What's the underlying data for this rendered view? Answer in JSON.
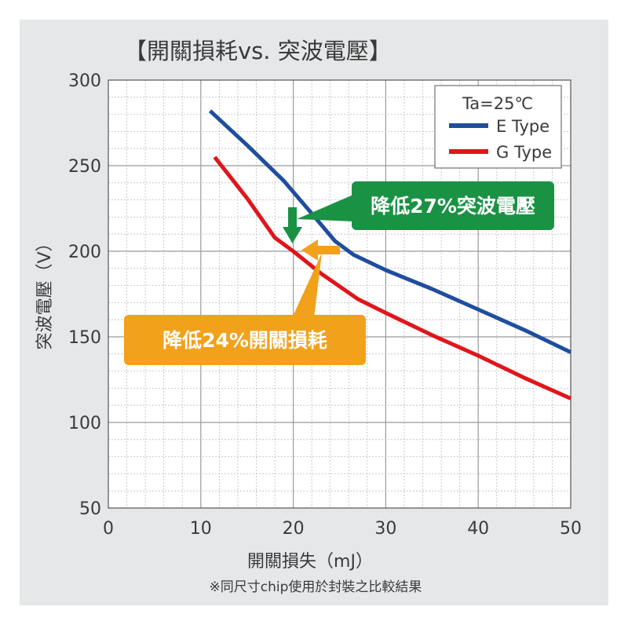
{
  "chart_data": {
    "type": "line",
    "title": "【開關損耗vs. 突波電壓】",
    "xlabel": "開關損失（mJ）",
    "ylabel": "突波電壓（V）",
    "xlim": [
      0,
      50
    ],
    "ylim": [
      50,
      300
    ],
    "x_ticks": [
      0,
      10,
      20,
      30,
      40,
      50
    ],
    "y_ticks": [
      50,
      100,
      150,
      200,
      250,
      300
    ],
    "grid": true,
    "legend_position": "top-right",
    "legend_title": "Ta=25℃",
    "series": [
      {
        "name": "E Type",
        "color": "#1f4e9e",
        "points": [
          [
            11,
            282
          ],
          [
            15,
            262
          ],
          [
            19,
            241
          ],
          [
            22,
            222
          ],
          [
            24.5,
            206
          ],
          [
            26.5,
            198
          ],
          [
            30,
            189
          ],
          [
            35,
            178
          ],
          [
            40,
            166
          ],
          [
            45,
            154
          ],
          [
            50,
            141
          ]
        ]
      },
      {
        "name": "G Type",
        "color": "#e0151b",
        "points": [
          [
            11.5,
            255
          ],
          [
            15,
            231
          ],
          [
            18,
            208
          ],
          [
            20,
            200
          ],
          [
            23,
            187
          ],
          [
            27,
            172
          ],
          [
            30,
            164
          ],
          [
            35,
            151
          ],
          [
            40,
            139
          ],
          [
            45,
            126
          ],
          [
            50,
            114
          ]
        ]
      }
    ],
    "annotations": [
      {
        "text": "降低27%突波電壓",
        "color": "#1a9244"
      },
      {
        "text": "降低24%開關損耗",
        "color": "#f2a11b"
      }
    ],
    "footnote": "※同尺寸chip使用於封裝之比較結果"
  }
}
